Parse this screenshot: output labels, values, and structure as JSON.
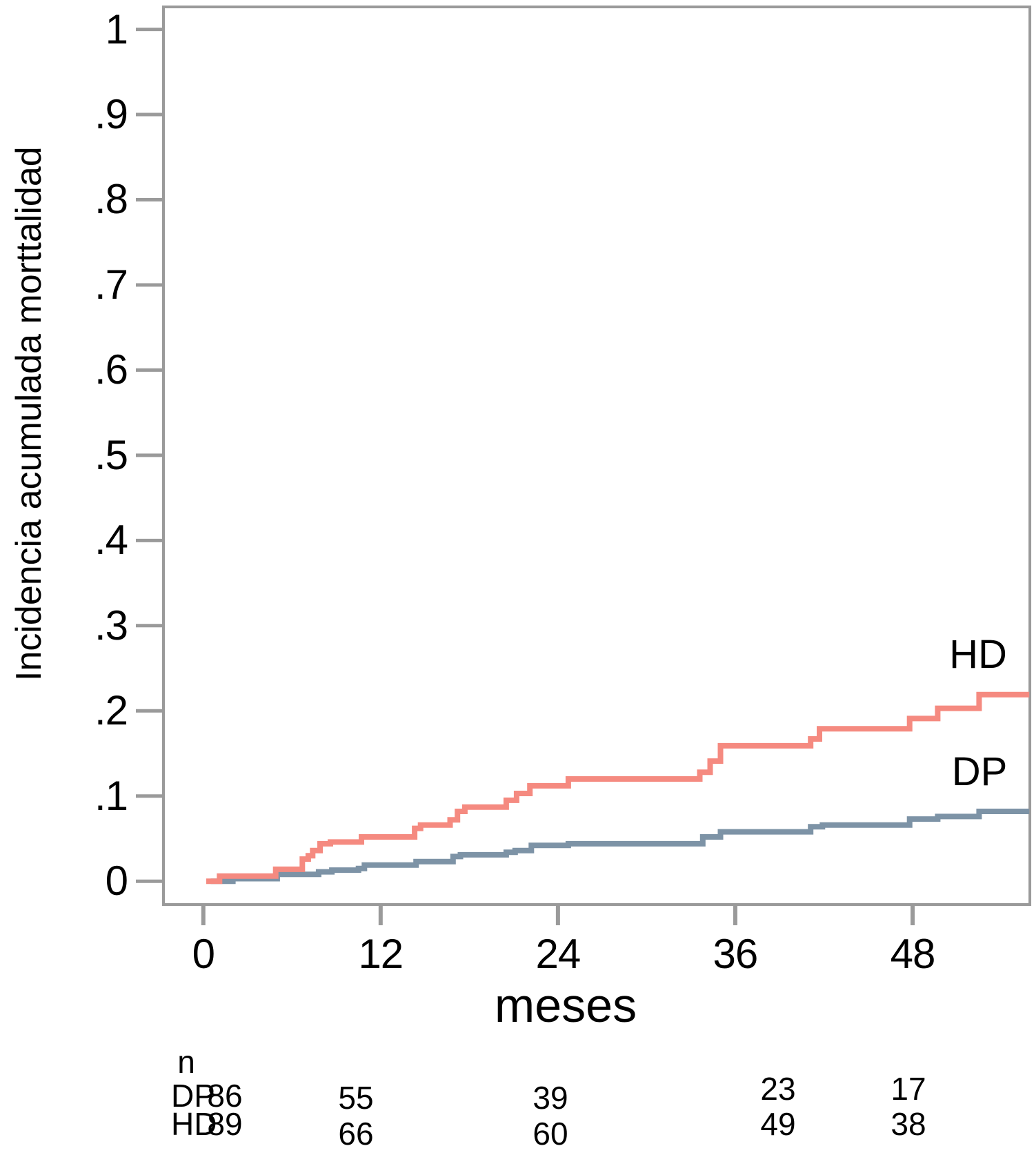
{
  "chart_data": {
    "type": "line",
    "subtype": "cumulative-incidence step curves (Kaplan-Meier style)",
    "title": "",
    "xlabel": "meses",
    "ylabel": "Incidencia acumulada morttalidad",
    "xlim": [
      -2.79,
      56.03
    ],
    "ylim": [
      -0.029,
      1.028
    ],
    "grid": false,
    "legend_position": "labels at right end of curves",
    "x_ticks": [
      {
        "value": 0,
        "label": "0"
      },
      {
        "value": 12,
        "label": "12"
      },
      {
        "value": 24,
        "label": "24"
      },
      {
        "value": 36,
        "label": "36"
      },
      {
        "value": 48,
        "label": "48"
      }
    ],
    "y_ticks": [
      {
        "value": 0.0,
        "label": "0"
      },
      {
        "value": 0.1,
        "label": ".1"
      },
      {
        "value": 0.2,
        "label": ".2"
      },
      {
        "value": 0.3,
        "label": ".3"
      },
      {
        "value": 0.4,
        "label": ".4"
      },
      {
        "value": 0.5,
        "label": ".5"
      },
      {
        "value": 0.6,
        "label": ".6"
      },
      {
        "value": 0.7,
        "label": ".7"
      },
      {
        "value": 0.8,
        "label": ".8"
      },
      {
        "value": 0.9,
        "label": ".9"
      },
      {
        "value": 1.0,
        "label": "1"
      }
    ],
    "colors": {
      "hd": "#F58A80",
      "dp": "#7D93A6",
      "axis": "#9A9A9A",
      "text": "#000000"
    },
    "series": [
      {
        "name": "DP",
        "color": "#7D93A6",
        "points": [
          [
            0.5,
            0
          ],
          [
            2.0,
            0.003
          ],
          [
            5.0,
            0.008
          ],
          [
            7.8,
            0.011
          ],
          [
            8.7,
            0.013
          ],
          [
            10.5,
            0.015
          ],
          [
            10.9,
            0.019
          ],
          [
            14.4,
            0.023
          ],
          [
            16.9,
            0.029
          ],
          [
            17.4,
            0.031
          ],
          [
            20.5,
            0.034
          ],
          [
            21.1,
            0.036
          ],
          [
            22.2,
            0.042
          ],
          [
            24.7,
            0.044
          ],
          [
            33.8,
            0.052
          ],
          [
            35.0,
            0.058
          ],
          [
            41.1,
            0.064
          ],
          [
            41.9,
            0.066
          ],
          [
            47.8,
            0.073
          ],
          [
            49.7,
            0.076
          ],
          [
            52.5,
            0.082
          ],
          [
            55.9,
            0.082
          ]
        ]
      },
      {
        "name": "HD",
        "color": "#F58A80",
        "points": [
          [
            0.2,
            0
          ],
          [
            1.1,
            0.006
          ],
          [
            4.9,
            0.014
          ],
          [
            6.7,
            0.026
          ],
          [
            7.1,
            0.03
          ],
          [
            7.4,
            0.036
          ],
          [
            7.9,
            0.044
          ],
          [
            8.6,
            0.046
          ],
          [
            10.7,
            0.052
          ],
          [
            14.3,
            0.062
          ],
          [
            14.7,
            0.066
          ],
          [
            16.7,
            0.072
          ],
          [
            17.2,
            0.082
          ],
          [
            17.7,
            0.087
          ],
          [
            20.5,
            0.095
          ],
          [
            21.2,
            0.103
          ],
          [
            22.1,
            0.112
          ],
          [
            24.7,
            0.12
          ],
          [
            33.6,
            0.128
          ],
          [
            34.3,
            0.141
          ],
          [
            35.0,
            0.159
          ],
          [
            41.1,
            0.167
          ],
          [
            41.7,
            0.179
          ],
          [
            47.8,
            0.191
          ],
          [
            49.7,
            0.203
          ],
          [
            52.5,
            0.219
          ],
          [
            55.9,
            0.219
          ]
        ]
      }
    ],
    "risk_table": {
      "header": "n",
      "rows": [
        {
          "label": "DP",
          "counts": [
            "86",
            "55",
            "39",
            "23",
            "17"
          ]
        },
        {
          "label": "HD",
          "counts": [
            "89",
            "66",
            "60",
            "49",
            "38"
          ]
        }
      ]
    }
  }
}
